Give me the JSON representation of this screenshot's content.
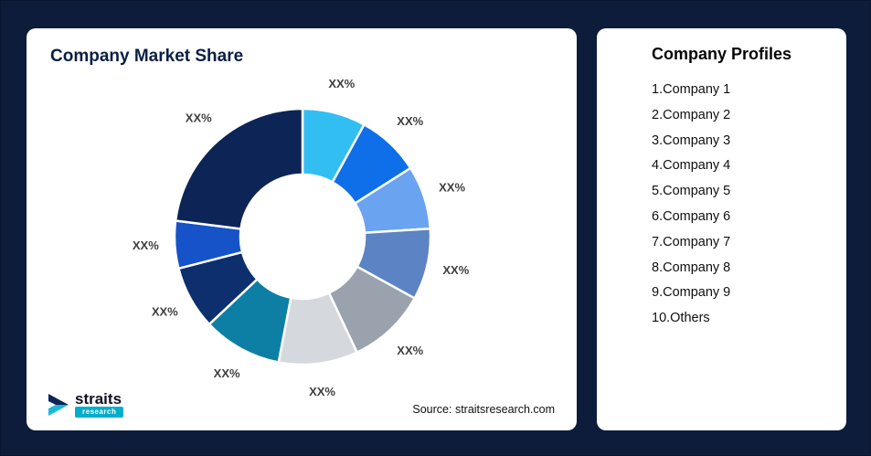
{
  "page": {
    "background": "#0d1c3a"
  },
  "market_share": {
    "title": "Company Market Share",
    "source": "Source: straitsresearch.com",
    "logo": {
      "name": "straits",
      "sub": "research"
    }
  },
  "profiles": {
    "title": "Company Profiles",
    "items": [
      "1.Company 1",
      "2.Company 2",
      "3.Company 3",
      "4.Company 4",
      "5.Company 5",
      "6.Company 6",
      "7.Company 7",
      "8.Company 8",
      "9.Company 9",
      "10.Others"
    ]
  },
  "chart_data": {
    "type": "pie",
    "subtype": "donut",
    "title": "Company Market Share",
    "start_angle_deg": 0,
    "direction": "clockwise",
    "legend_position": "none",
    "labels": [
      "Company 1",
      "Company 2",
      "Company 3",
      "Company 4",
      "Company 5",
      "Company 6",
      "Company 7",
      "Company 8",
      "Company 9",
      "Others"
    ],
    "values": [
      8,
      8,
      8,
      9,
      10,
      10,
      10,
      8,
      6,
      23
    ],
    "value_display": "XX%",
    "colors": [
      "#33BEF2",
      "#0E6FE8",
      "#6AA3F0",
      "#5C83C3",
      "#99A2AD",
      "#D5D8DC",
      "#0E7FA4",
      "#0D2F6E",
      "#1652C8",
      "#0D2456"
    ]
  }
}
